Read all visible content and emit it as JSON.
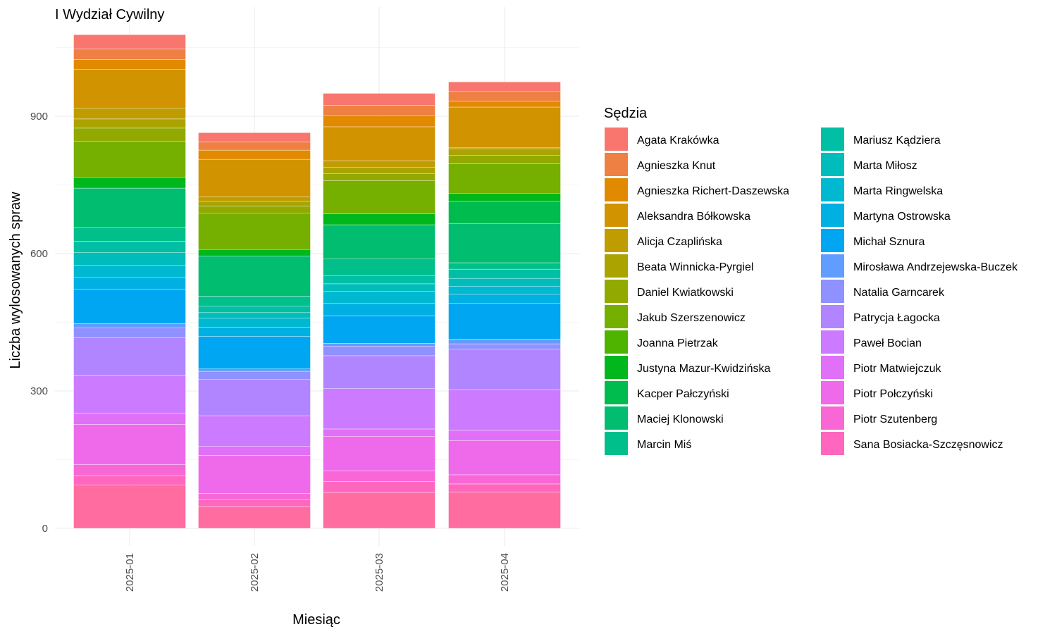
{
  "chart_data": {
    "type": "bar",
    "stacked": true,
    "title": "I Wydział Cywilny",
    "xlabel": "Miesiąc",
    "ylabel": "Liczba wylosowanych spraw",
    "legend_title": "Sędzia",
    "legend_position": "right",
    "grid": true,
    "ylim": [
      0,
      1082
    ],
    "yticks": [
      0,
      300,
      600,
      900
    ],
    "categories": [
      "2025-01",
      "2025-02",
      "2025-03",
      "2025-04"
    ],
    "series": [
      {
        "name": "Agata Krakówka",
        "color": "#F8766D",
        "values": [
          31,
          20,
          26,
          20
        ]
      },
      {
        "name": "Agnieszka Knut",
        "color": "#EE8043",
        "values": [
          23,
          18,
          23,
          22
        ]
      },
      {
        "name": "Agnieszka Richert-Daszewska",
        "color": "#E18A00",
        "values": [
          22,
          20,
          24,
          13
        ]
      },
      {
        "name": "Aleksandra Bółkowska",
        "color": "#D19300",
        "values": [
          84,
          82,
          74,
          89
        ]
      },
      {
        "name": "Alicja Czaplińska",
        "color": "#BF9C00",
        "values": [
          24,
          10,
          15,
          2
        ]
      },
      {
        "name": "Beata Winnicka-Pyrgiel",
        "color": "#AAA300",
        "values": [
          20,
          10,
          13,
          14
        ]
      },
      {
        "name": "Daniel Kwiatkowski",
        "color": "#92A900",
        "values": [
          29,
          16,
          16,
          19
        ]
      },
      {
        "name": "Jakub Szerszenowicz",
        "color": "#75AF00",
        "values": [
          78,
          79,
          72,
          64
        ]
      },
      {
        "name": "Joanna Pietrzak",
        "color": "#4EB400",
        "values": [
          0,
          0,
          0,
          0
        ]
      },
      {
        "name": "Justyna Mazur-Kwidzińska",
        "color": "#00B81B",
        "values": [
          24,
          14,
          24,
          18
        ]
      },
      {
        "name": "Kacper Pałczyński",
        "color": "#00BB4E",
        "values": [
          0,
          0,
          0,
          48
        ]
      },
      {
        "name": "Maciej Klonowski",
        "color": "#00BD6F",
        "values": [
          86,
          88,
          75,
          86
        ]
      },
      {
        "name": "Marcin Miś",
        "color": "#00BF8B",
        "values": [
          30,
          22,
          36,
          14
        ]
      },
      {
        "name": "Mariusz Kądziera",
        "color": "#00BFA4",
        "values": [
          25,
          14,
          18,
          20
        ]
      },
      {
        "name": "Marta Miłosz",
        "color": "#00BCBB",
        "values": [
          27,
          12,
          16,
          17
        ]
      },
      {
        "name": "Marta Ringwelska",
        "color": "#00B8D0",
        "values": [
          27,
          20,
          27,
          18
        ]
      },
      {
        "name": "Martyna Ostrowska",
        "color": "#00B0E2",
        "values": [
          26,
          20,
          27,
          20
        ]
      },
      {
        "name": "Michał Sznura",
        "color": "#00A6F1",
        "values": [
          75,
          71,
          60,
          78
        ]
      },
      {
        "name": "Mirosława Andrzejewska-Buczek",
        "color": "#619CFF",
        "values": [
          9,
          5,
          6,
          10
        ]
      },
      {
        "name": "Natalia Garncarek",
        "color": "#8F91FF",
        "values": [
          22,
          18,
          21,
          12
        ]
      },
      {
        "name": "Patrycja Łagocka",
        "color": "#B185FF",
        "values": [
          83,
          79,
          72,
          88
        ]
      },
      {
        "name": "Paweł Bocian",
        "color": "#CC7AFF",
        "values": [
          82,
          67,
          88,
          89
        ]
      },
      {
        "name": "Piotr Matwiejczuk",
        "color": "#E070F8",
        "values": [
          24,
          20,
          16,
          22
        ]
      },
      {
        "name": "Piotr Połczyński",
        "color": "#EE6AEA",
        "values": [
          88,
          83,
          76,
          75
        ]
      },
      {
        "name": "Piotr Szutenberg",
        "color": "#F967D7",
        "values": [
          24,
          14,
          23,
          20
        ]
      },
      {
        "name": "Sana Bosiacka-Szczęsnowicz",
        "color": "#FF67BE",
        "values": [
          20,
          15,
          24,
          18
        ]
      },
      {
        "name": "",
        "color": "#FF6C9F",
        "values": [
          95,
          47,
          78,
          79
        ]
      }
    ]
  }
}
